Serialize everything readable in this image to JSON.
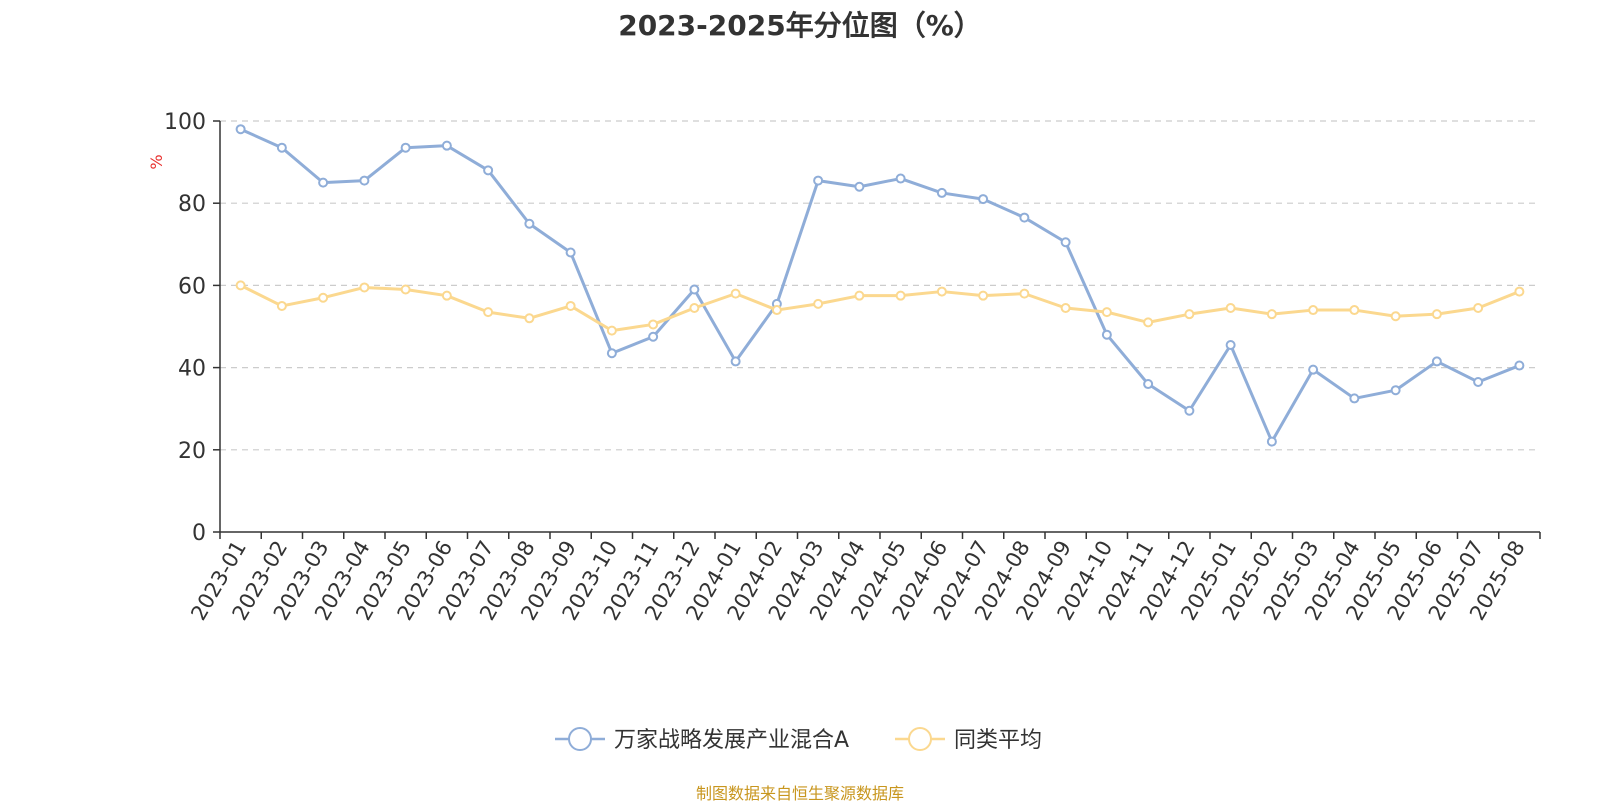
{
  "chart_data": {
    "type": "line",
    "title": "2023-2025年分位图（%）",
    "ylabel": "%",
    "ylim": [
      0,
      100
    ],
    "yticks": [
      0,
      20,
      40,
      60,
      80,
      100
    ],
    "grid": true,
    "legend_position": "bottom-center",
    "categories": [
      "2023-01",
      "2023-02",
      "2023-03",
      "2023-04",
      "2023-05",
      "2023-06",
      "2023-07",
      "2023-08",
      "2023-09",
      "2023-10",
      "2023-11",
      "2023-12",
      "2024-01",
      "2024-02",
      "2024-03",
      "2024-04",
      "2024-05",
      "2024-06",
      "2024-07",
      "2024-08",
      "2024-09",
      "2024-10",
      "2024-11",
      "2024-12",
      "2025-01",
      "2025-02",
      "2025-03",
      "2025-04",
      "2025-05",
      "2025-06",
      "2025-07",
      "2025-08"
    ],
    "series": [
      {
        "name": "万家战略发展产业混合A",
        "color": "#8fadd8",
        "values": [
          98,
          93.5,
          85,
          85.5,
          93.5,
          94,
          88,
          75,
          68,
          43.5,
          47.5,
          59,
          41.5,
          55.5,
          85.5,
          84,
          86,
          82.5,
          81,
          76.5,
          70.5,
          48,
          36,
          29.5,
          45.5,
          22,
          39.5,
          32.5,
          34.5,
          41.5,
          36.5,
          40.5
        ]
      },
      {
        "name": "同类平均",
        "color": "#fbd88f",
        "values": [
          60,
          55,
          57,
          59.5,
          59,
          57.5,
          53.5,
          52,
          55,
          49,
          50.5,
          54.5,
          58,
          54,
          55.5,
          57.5,
          57.5,
          58.5,
          57.5,
          58,
          54.5,
          53.5,
          51,
          53,
          54.5,
          53,
          54,
          54,
          52.5,
          53,
          54.5,
          58.5
        ]
      }
    ]
  },
  "source_note": "制图数据来自恒生聚源数据库"
}
